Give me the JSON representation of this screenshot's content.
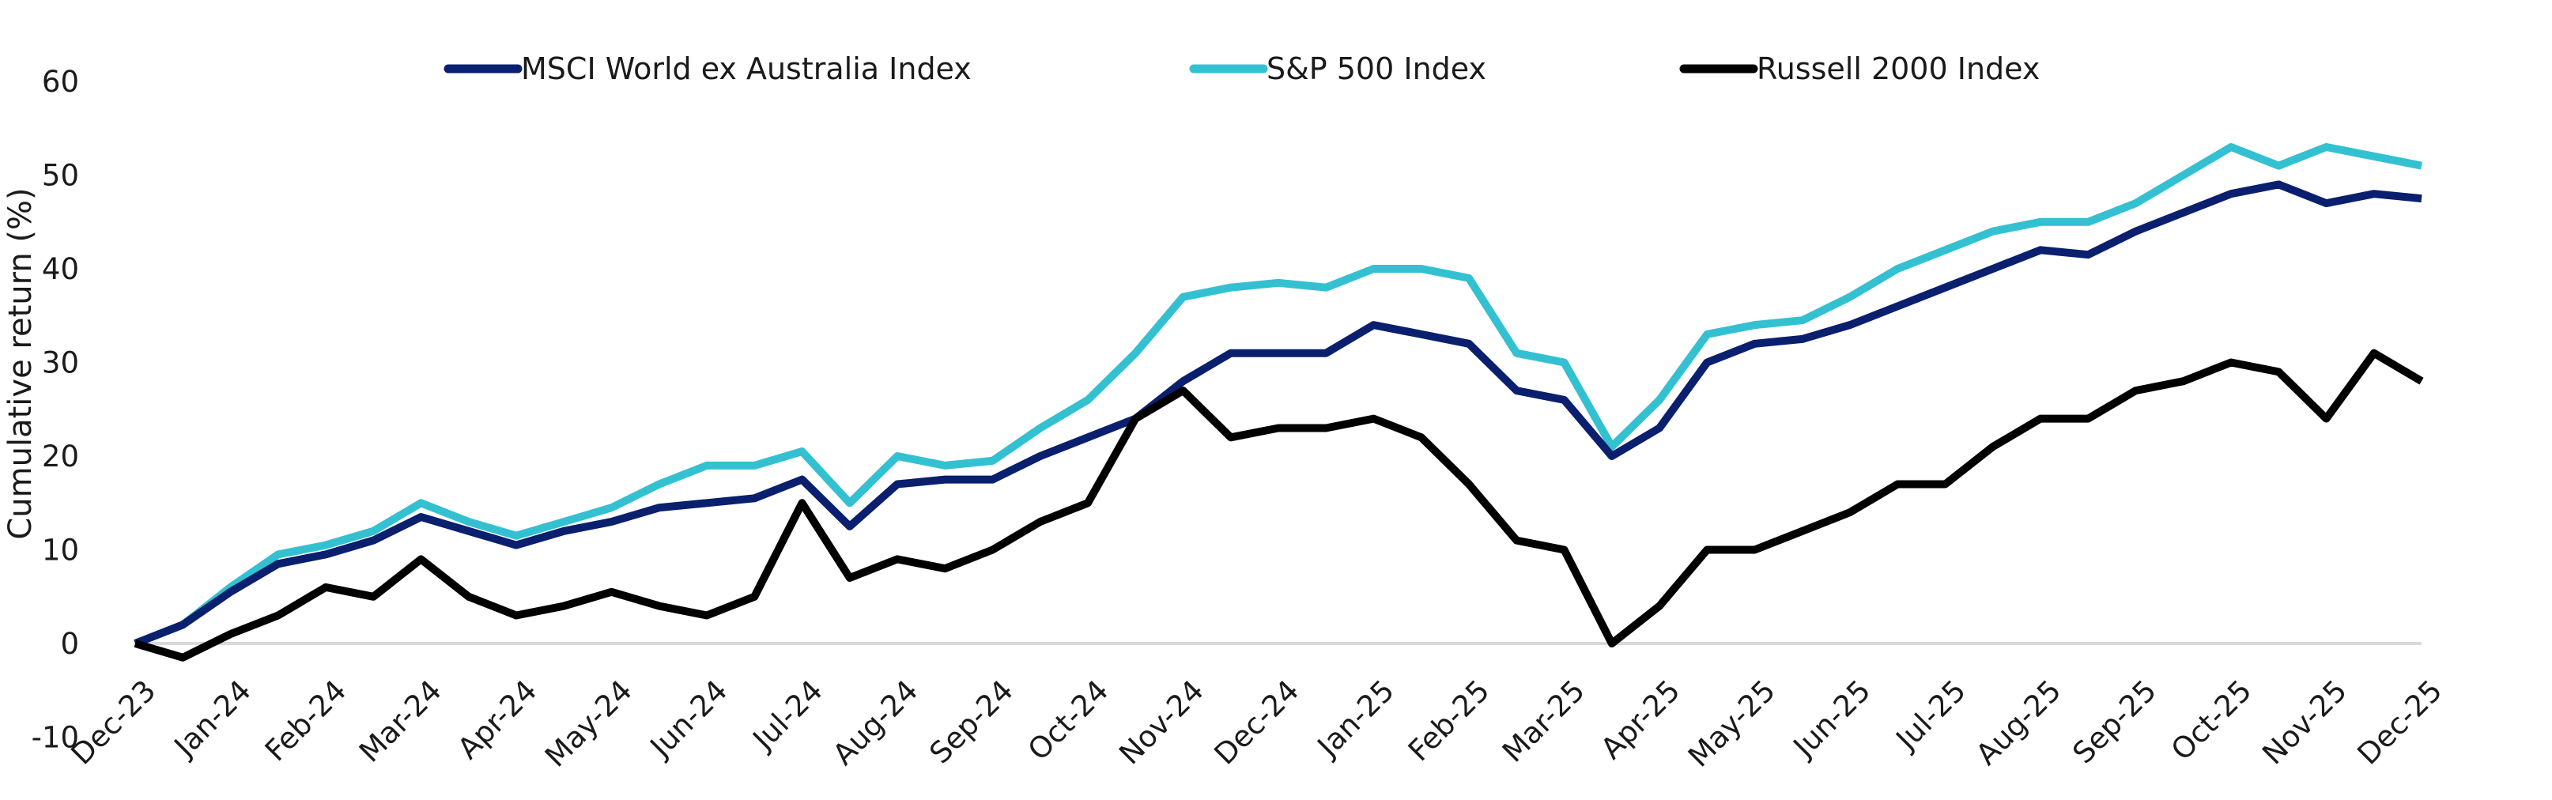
{
  "chart_data": {
    "type": "line",
    "title": "",
    "xlabel": "",
    "ylabel": "Cumulative return (%)",
    "ylim": [
      -10,
      60
    ],
    "yticks": [
      -10,
      0,
      10,
      20,
      30,
      40,
      50,
      60
    ],
    "xtick_labels": [
      "Dec-23",
      "Jan-24",
      "Feb-24",
      "Mar-24",
      "Apr-24",
      "May-24",
      "Jun-24",
      "Jul-24",
      "Aug-24",
      "Sep-24",
      "Oct-24",
      "Nov-24",
      "Dec-24",
      "Jan-25",
      "Feb-25",
      "Mar-25",
      "Apr-25",
      "May-25",
      "Jun-25",
      "Jul-25",
      "Aug-25",
      "Sep-25",
      "Oct-25",
      "Nov-25",
      "Dec-25"
    ],
    "x_note_units": "half-month steps from Dec-23 to Dec-25",
    "grid": false,
    "legend_placement": "top",
    "series": [
      {
        "name": "MSCI World ex Australia Index",
        "color": "#0a1f6e",
        "values": [
          0,
          2,
          5.5,
          8.5,
          9.5,
          11,
          13.5,
          12,
          10.5,
          12,
          13,
          14.5,
          15,
          15.5,
          17.5,
          12.5,
          17,
          17.5,
          17.5,
          20,
          22,
          24,
          28,
          31,
          31,
          31,
          34,
          33,
          32,
          27,
          26,
          20,
          23,
          30,
          32,
          32.5,
          34,
          36,
          38,
          40,
          42,
          41.5,
          44,
          46,
          48,
          49,
          47,
          48,
          47.5
        ]
      },
      {
        "name": "S&P 500 Index",
        "color": "#33c1d2",
        "values": [
          0,
          2,
          6,
          9.5,
          10.5,
          12,
          15,
          13,
          11.5,
          13,
          14.5,
          17,
          19,
          19,
          20.5,
          15,
          20,
          19,
          19.5,
          23,
          26,
          31,
          37,
          38,
          38.5,
          38,
          40,
          40,
          39,
          31,
          30,
          21,
          26,
          33,
          34,
          34.5,
          37,
          40,
          42,
          44,
          45,
          45,
          47,
          50,
          53,
          51,
          53,
          52,
          51
        ]
      },
      {
        "name": "Russell 2000 Index",
        "color": "#000000",
        "values": [
          0,
          -1.5,
          1,
          3,
          6,
          5,
          9,
          5,
          3,
          4,
          5.5,
          4,
          3,
          5,
          15,
          7,
          9,
          8,
          10,
          13,
          15,
          24,
          27,
          22,
          23,
          23,
          24,
          22,
          17,
          11,
          10,
          0,
          4,
          10,
          10,
          12,
          14,
          17,
          17,
          21,
          24,
          24,
          27,
          28,
          30,
          29,
          24,
          31,
          28
        ]
      }
    ]
  }
}
